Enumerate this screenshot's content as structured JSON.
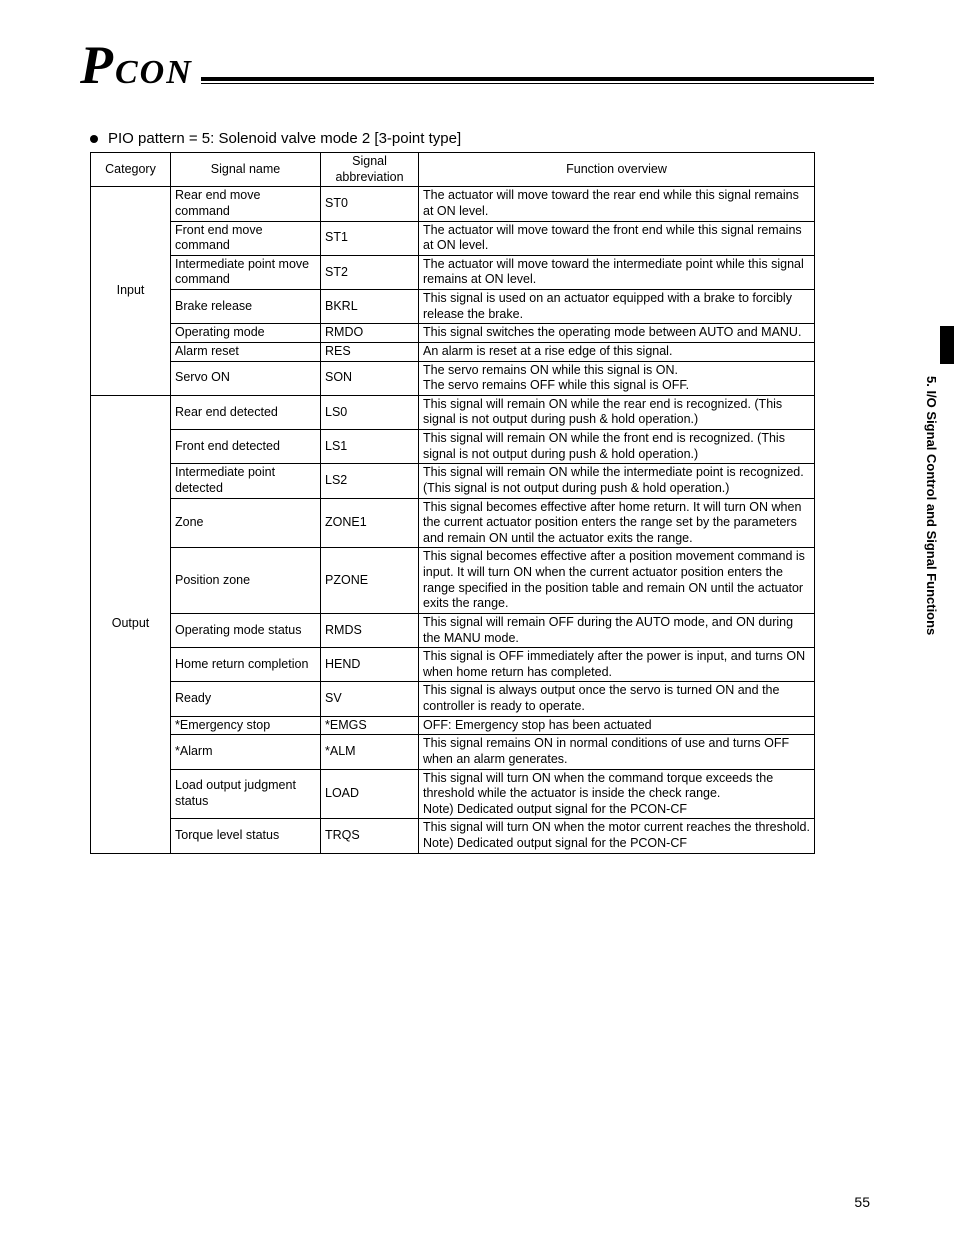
{
  "header": {
    "logo_left": "P",
    "logo_right": "CON"
  },
  "bullet_title": "PIO pattern = 5: Solenoid valve mode 2 [3-point type]",
  "table": {
    "headers": [
      "Category",
      "Signal name",
      "Signal abbreviation",
      "Function overview"
    ],
    "groups": [
      {
        "category": "Input",
        "rows": [
          {
            "name": "Rear end move command",
            "abbr": "ST0",
            "desc": "The actuator will move toward the rear end while this signal remains at ON level."
          },
          {
            "name": "Front end move command",
            "abbr": "ST1",
            "desc": "The actuator will move toward the front end while this signal remains at ON level."
          },
          {
            "name": "Intermediate point move command",
            "abbr": "ST2",
            "desc": "The actuator will move toward the intermediate point while this signal remains at ON level."
          },
          {
            "name": "Brake release",
            "abbr": "BKRL",
            "desc": "This signal is used on an actuator equipped with a brake to forcibly release the brake."
          },
          {
            "name": "Operating mode",
            "abbr": "RMDO",
            "desc": "This signal switches the operating mode between AUTO and MANU."
          },
          {
            "name": "Alarm reset",
            "abbr": "RES",
            "desc": "An alarm is reset at a rise edge of this signal."
          },
          {
            "name": "Servo ON",
            "abbr": "SON",
            "desc": "The servo remains ON while this signal is ON.\nThe servo remains OFF while this signal is OFF."
          }
        ]
      },
      {
        "category": "Output",
        "rows": [
          {
            "name": "Rear end detected",
            "abbr": "LS0",
            "desc": "This signal will remain ON while the rear end is recognized. (This signal is not output during push & hold operation.)"
          },
          {
            "name": "Front end detected",
            "abbr": "LS1",
            "desc": "This signal will remain ON while the front end is recognized. (This signal is not output during push & hold operation.)"
          },
          {
            "name": "Intermediate point detected",
            "abbr": "LS2",
            "desc": "This signal will remain ON while the intermediate point is recognized. (This signal is not output during push & hold operation.)"
          },
          {
            "name": "Zone",
            "abbr": "ZONE1",
            "desc": "This signal becomes effective after home return. It will turn ON when the current actuator position enters the range set by the parameters and remain ON until the actuator exits the range."
          },
          {
            "name": "Position zone",
            "abbr": "PZONE",
            "desc": "This signal becomes effective after a position movement command is input. It will turn ON when the current actuator position enters the range specified in the position table and remain ON until the actuator exits the range."
          },
          {
            "name": "Operating mode status",
            "abbr": "RMDS",
            "desc": "This signal will remain OFF during the AUTO mode, and ON during the MANU mode."
          },
          {
            "name": "Home return completion",
            "abbr": "HEND",
            "desc": "This signal is OFF immediately after the power is input, and turns ON when home return has completed."
          },
          {
            "name": "Ready",
            "abbr": "SV",
            "desc": "This signal is always output once the servo is turned ON and the controller is ready to operate."
          },
          {
            "name": "*Emergency stop",
            "abbr": "*EMGS",
            "desc": "OFF: Emergency stop has been actuated"
          },
          {
            "name": "*Alarm",
            "abbr": "*ALM",
            "desc": "This signal remains ON in normal conditions of use and turns OFF when an alarm generates."
          },
          {
            "name": "Load output judgment status",
            "abbr": "LOAD",
            "desc": "This signal will turn ON when the command torque exceeds the threshold while the actuator is inside the check range.\nNote) Dedicated output signal for the PCON-CF"
          },
          {
            "name": "Torque level status",
            "abbr": "TRQS",
            "desc": "This signal will turn ON when the motor current reaches the threshold.\nNote) Dedicated output signal for the PCON-CF"
          }
        ]
      }
    ]
  },
  "side_label": "5. I/O Signal Control and Signal Functions",
  "page_number": "55"
}
